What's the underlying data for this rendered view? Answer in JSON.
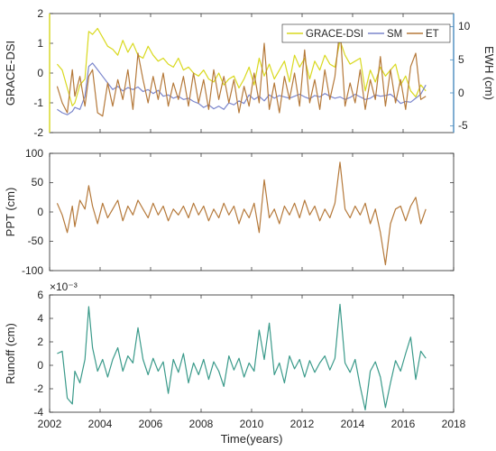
{
  "chart_data": [
    {
      "type": "line",
      "ylabel": "GRACE-DSI",
      "ylabel_right": "EWH (cm)",
      "xlim": [
        2002,
        2018
      ],
      "ylim": [
        -2,
        2
      ],
      "ylim_right": [
        -6,
        12
      ],
      "yticks": [
        "-2",
        "-1",
        "0",
        "1",
        "2"
      ],
      "yticks_right": [
        "-5",
        "0",
        "5",
        "10"
      ],
      "left_axis_color": "#d6d61c",
      "right_axis_color": "#4a8bbe",
      "legend_position": "top-right",
      "series": [
        {
          "name": "GRACE-DSI",
          "axis": "left",
          "color": "#d9d91f",
          "x": [
            2002.3,
            2002.5,
            2002.7,
            2002.9,
            2003.0,
            2003.2,
            2003.4,
            2003.55,
            2003.7,
            2003.9,
            2004.1,
            2004.3,
            2004.5,
            2004.7,
            2004.9,
            2005.1,
            2005.3,
            2005.5,
            2005.7,
            2005.9,
            2006.1,
            2006.3,
            2006.5,
            2006.7,
            2006.9,
            2007.1,
            2007.3,
            2007.5,
            2007.7,
            2007.9,
            2008.1,
            2008.3,
            2008.5,
            2008.7,
            2008.9,
            2009.1,
            2009.3,
            2009.5,
            2009.7,
            2009.9,
            2010.1,
            2010.3,
            2010.5,
            2010.7,
            2010.9,
            2011.1,
            2011.3,
            2011.5,
            2011.7,
            2011.9,
            2012.1,
            2012.3,
            2012.5,
            2012.7,
            2012.9,
            2013.1,
            2013.3,
            2013.5,
            2013.7,
            2013.9,
            2014.1,
            2014.3,
            2014.5,
            2014.7,
            2014.9,
            2015.1,
            2015.3,
            2015.5,
            2015.7,
            2015.9,
            2016.1,
            2016.3,
            2016.5,
            2016.7,
            2016.9
          ],
          "values": [
            0.3,
            0.1,
            -0.5,
            -1.1,
            -1.0,
            -0.4,
            -0.2,
            1.4,
            1.3,
            1.5,
            1.2,
            0.9,
            0.8,
            0.6,
            1.1,
            0.7,
            1.0,
            0.6,
            0.5,
            0.9,
            0.6,
            0.4,
            0.5,
            0.3,
            0.2,
            0.5,
            0.1,
            0.2,
            0.0,
            -0.1,
            0.1,
            -0.2,
            -0.3,
            0.0,
            -0.4,
            -0.2,
            -0.1,
            -0.5,
            -0.2,
            0.2,
            -0.4,
            0.5,
            -0.1,
            0.3,
            -0.2,
            0.1,
            0.4,
            -0.3,
            0.6,
            0.2,
            0.5,
            -0.2,
            0.4,
            0.1,
            0.6,
            0.3,
            0.2,
            1.1,
            0.6,
            0.3,
            0.4,
            0.5,
            -0.6,
            0.1,
            -0.3,
            0.2,
            -0.1,
            0.1,
            0.3,
            -0.4,
            -0.1,
            -0.6,
            -0.8,
            -0.4,
            -0.6
          ]
        },
        {
          "name": "SM",
          "axis": "right",
          "color": "#7b86cc",
          "x": [
            2002.3,
            2002.5,
            2002.7,
            2002.9,
            2003.0,
            2003.2,
            2003.4,
            2003.55,
            2003.7,
            2003.9,
            2004.1,
            2004.3,
            2004.5,
            2004.7,
            2004.9,
            2005.1,
            2005.3,
            2005.5,
            2005.7,
            2005.9,
            2006.1,
            2006.3,
            2006.5,
            2006.7,
            2006.9,
            2007.1,
            2007.3,
            2007.5,
            2007.7,
            2007.9,
            2008.1,
            2008.3,
            2008.5,
            2008.7,
            2008.9,
            2009.1,
            2009.3,
            2009.5,
            2009.7,
            2009.9,
            2010.1,
            2010.3,
            2010.5,
            2010.7,
            2010.9,
            2011.1,
            2011.3,
            2011.5,
            2011.7,
            2011.9,
            2012.1,
            2012.3,
            2012.5,
            2012.7,
            2012.9,
            2013.1,
            2013.3,
            2013.5,
            2013.7,
            2013.9,
            2014.1,
            2014.3,
            2014.5,
            2014.7,
            2014.9,
            2015.1,
            2015.3,
            2015.5,
            2015.7,
            2015.9,
            2016.1,
            2016.3,
            2016.5,
            2016.7,
            2016.9
          ],
          "values": [
            -2.5,
            -3.0,
            -3.3,
            -2.8,
            -2.2,
            -2.5,
            -0.5,
            4.0,
            4.5,
            3.5,
            2.5,
            1.5,
            0.5,
            1.0,
            0.3,
            0.8,
            0.5,
            0.9,
            0.2,
            0.5,
            -0.1,
            0.4,
            -0.5,
            -0.3,
            -0.8,
            -0.5,
            -1.0,
            -0.8,
            -1.3,
            -1.6,
            -2.2,
            -1.8,
            -2.4,
            -2.0,
            -2.5,
            -1.5,
            -1.8,
            -1.2,
            -1.6,
            -0.3,
            -1.0,
            -0.5,
            -1.2,
            -0.3,
            -0.8,
            -0.4,
            -0.6,
            -0.8,
            -0.5,
            -0.2,
            -0.6,
            -0.9,
            -0.4,
            -0.6,
            -0.1,
            -0.5,
            -0.8,
            -0.6,
            -1.0,
            -0.7,
            -0.2,
            -0.6,
            -1.0,
            -0.8,
            -0.3,
            -0.5,
            -0.4,
            -0.2,
            -0.8,
            -1.6,
            -1.3,
            -1.4,
            -0.8,
            -0.2,
            1.2
          ]
        },
        {
          "name": "ET",
          "axis": "right",
          "color": "#b5793a",
          "x": [
            2002.3,
            2002.5,
            2002.7,
            2002.9,
            2003.0,
            2003.2,
            2003.4,
            2003.55,
            2003.7,
            2003.9,
            2004.1,
            2004.3,
            2004.5,
            2004.7,
            2004.9,
            2005.1,
            2005.3,
            2005.5,
            2005.7,
            2005.9,
            2006.1,
            2006.3,
            2006.5,
            2006.7,
            2006.9,
            2007.1,
            2007.3,
            2007.5,
            2007.7,
            2007.9,
            2008.1,
            2008.3,
            2008.5,
            2008.7,
            2008.9,
            2009.1,
            2009.3,
            2009.5,
            2009.7,
            2009.9,
            2010.1,
            2010.3,
            2010.5,
            2010.7,
            2010.9,
            2011.1,
            2011.3,
            2011.5,
            2011.7,
            2011.9,
            2012.1,
            2012.3,
            2012.5,
            2012.7,
            2012.9,
            2013.1,
            2013.3,
            2013.5,
            2013.7,
            2013.9,
            2014.1,
            2014.3,
            2014.5,
            2014.7,
            2014.9,
            2015.1,
            2015.3,
            2015.5,
            2015.7,
            2015.9,
            2016.1,
            2016.3,
            2016.5,
            2016.7,
            2016.9
          ],
          "values": [
            1.0,
            -1.5,
            -3.0,
            3.5,
            -0.5,
            2.5,
            -2.0,
            2.5,
            3.5,
            -3.0,
            -3.5,
            1.5,
            -2.0,
            2.0,
            -1.0,
            3.5,
            -2.5,
            6.0,
            2.0,
            -1.5,
            2.5,
            -1.0,
            3.0,
            -2.0,
            1.5,
            -1.0,
            2.5,
            -2.0,
            3.0,
            -1.5,
            2.0,
            -2.5,
            3.5,
            -1.0,
            2.5,
            -1.5,
            2.0,
            -3.0,
            1.0,
            -2.0,
            3.0,
            -1.5,
            7.5,
            -2.5,
            1.5,
            -3.0,
            2.5,
            -1.0,
            3.0,
            -2.0,
            6.5,
            -1.5,
            2.0,
            -2.5,
            3.5,
            -1.0,
            2.5,
            10.0,
            -2.0,
            1.5,
            -1.5,
            3.5,
            -2.5,
            2.0,
            -1.0,
            5.5,
            -2.0,
            3.5,
            -1.5,
            2.0,
            -2.5,
            4.0,
            6.0,
            -1.0,
            -0.5
          ]
        }
      ]
    },
    {
      "type": "line",
      "ylabel": "PPT (cm)",
      "xlim": [
        2002,
        2018
      ],
      "ylim": [
        -100,
        100
      ],
      "yticks": [
        "-100",
        "-50",
        "0",
        "50",
        "100"
      ],
      "series": [
        {
          "color": "#b5793a",
          "x": [
            2002.3,
            2002.5,
            2002.7,
            2002.9,
            2003.0,
            2003.2,
            2003.4,
            2003.55,
            2003.7,
            2003.9,
            2004.1,
            2004.3,
            2004.5,
            2004.7,
            2004.9,
            2005.1,
            2005.3,
            2005.5,
            2005.7,
            2005.9,
            2006.1,
            2006.3,
            2006.5,
            2006.7,
            2006.9,
            2007.1,
            2007.3,
            2007.5,
            2007.7,
            2007.9,
            2008.1,
            2008.3,
            2008.5,
            2008.7,
            2008.9,
            2009.1,
            2009.3,
            2009.5,
            2009.7,
            2009.9,
            2010.1,
            2010.3,
            2010.5,
            2010.7,
            2010.9,
            2011.1,
            2011.3,
            2011.5,
            2011.7,
            2011.9,
            2012.1,
            2012.3,
            2012.5,
            2012.7,
            2012.9,
            2013.1,
            2013.3,
            2013.5,
            2013.7,
            2013.9,
            2014.1,
            2014.3,
            2014.5,
            2014.7,
            2014.9,
            2015.1,
            2015.3,
            2015.5,
            2015.7,
            2015.9,
            2016.1,
            2016.3,
            2016.5,
            2016.7,
            2016.9
          ],
          "values": [
            15,
            -5,
            -35,
            10,
            -25,
            20,
            5,
            45,
            10,
            -20,
            15,
            -10,
            5,
            20,
            -15,
            10,
            -5,
            20,
            5,
            -10,
            15,
            -5,
            10,
            -15,
            5,
            -5,
            10,
            -10,
            15,
            -5,
            10,
            -15,
            5,
            -10,
            15,
            -5,
            10,
            -20,
            5,
            -10,
            15,
            -35,
            55,
            -10,
            5,
            -20,
            10,
            -5,
            15,
            -10,
            20,
            -5,
            10,
            -15,
            5,
            -10,
            15,
            85,
            5,
            -10,
            10,
            -5,
            15,
            -20,
            5,
            -35,
            -90,
            -20,
            5,
            10,
            -15,
            10,
            25,
            -20,
            5
          ]
        }
      ]
    },
    {
      "type": "line",
      "ylabel": "Runoff (cm)",
      "xlabel": "Time(years)",
      "xlim": [
        2002,
        2018
      ],
      "ylim": [
        -4,
        6
      ],
      "y_multiplier": "×10⁻³",
      "yticks": [
        "-4",
        "-2",
        "0",
        "2",
        "4",
        "6"
      ],
      "xticks": [
        "2002",
        "2004",
        "2006",
        "2008",
        "2010",
        "2012",
        "2014",
        "2016",
        "2018"
      ],
      "series": [
        {
          "color": "#3a9a8a",
          "x": [
            2002.3,
            2002.5,
            2002.7,
            2002.9,
            2003.0,
            2003.2,
            2003.4,
            2003.55,
            2003.7,
            2003.9,
            2004.1,
            2004.3,
            2004.5,
            2004.7,
            2004.9,
            2005.1,
            2005.3,
            2005.5,
            2005.7,
            2005.9,
            2006.1,
            2006.3,
            2006.5,
            2006.7,
            2006.9,
            2007.1,
            2007.3,
            2007.5,
            2007.7,
            2007.9,
            2008.1,
            2008.3,
            2008.5,
            2008.7,
            2008.9,
            2009.1,
            2009.3,
            2009.5,
            2009.7,
            2009.9,
            2010.1,
            2010.3,
            2010.5,
            2010.7,
            2010.9,
            2011.1,
            2011.3,
            2011.5,
            2011.7,
            2011.9,
            2012.1,
            2012.3,
            2012.5,
            2012.7,
            2012.9,
            2013.1,
            2013.3,
            2013.5,
            2013.7,
            2013.9,
            2014.1,
            2014.3,
            2014.5,
            2014.7,
            2014.9,
            2015.1,
            2015.3,
            2015.5,
            2015.7,
            2015.9,
            2016.1,
            2016.3,
            2016.5,
            2016.7,
            2016.9
          ],
          "values": [
            1.0,
            1.2,
            -2.8,
            -3.3,
            -0.5,
            -1.5,
            0.5,
            5.0,
            1.5,
            -0.5,
            0.5,
            -1.0,
            0.5,
            1.5,
            -0.5,
            0.8,
            0.2,
            3.2,
            0.5,
            -0.8,
            0.6,
            -0.5,
            0.3,
            -2.4,
            0.5,
            -0.6,
            1.0,
            -1.5,
            0.2,
            -0.8,
            0.5,
            -1.2,
            0.3,
            -0.5,
            -1.8,
            0.8,
            -0.4,
            0.6,
            -1.0,
            0.2,
            -0.5,
            3.0,
            0.5,
            3.6,
            -0.8,
            0.2,
            -1.5,
            0.8,
            -0.3,
            0.5,
            -1.0,
            0.4,
            -0.6,
            0.2,
            0.8,
            -0.4,
            0.6,
            5.2,
            0.2,
            -0.6,
            0.5,
            -1.8,
            -3.8,
            -0.5,
            0.3,
            -1.0,
            -3.6,
            -1.5,
            0.4,
            -0.5,
            1.0,
            2.4,
            -1.2,
            1.2,
            0.6
          ]
        }
      ]
    }
  ]
}
